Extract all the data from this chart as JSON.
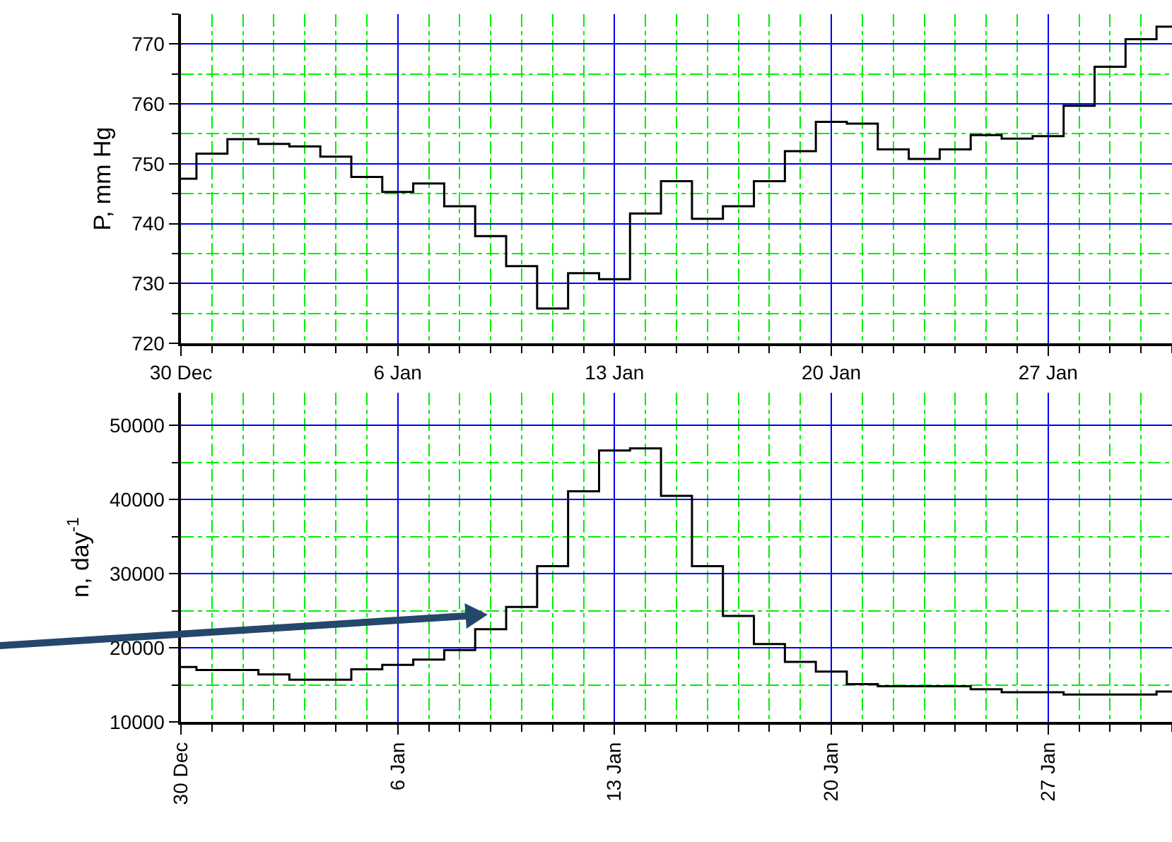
{
  "chart_data": [
    {
      "type": "step",
      "ylabel": "P, mm Hg",
      "categories": [
        "30 Dec",
        null,
        null,
        null,
        null,
        null,
        null,
        "6 Jan",
        null,
        null,
        null,
        null,
        null,
        null,
        "13 Jan",
        null,
        null,
        null,
        null,
        null,
        null,
        "20 Jan",
        null,
        null,
        null,
        null,
        null,
        null,
        "27 Jan",
        null,
        null,
        null,
        null
      ],
      "series": [
        {
          "color": "#000000",
          "values": [
            747.5,
            751.7,
            754.1,
            753.3,
            752.9,
            751.2,
            747.8,
            745.3,
            746.7,
            742.9,
            737.9,
            732.9,
            725.8,
            731.7,
            730.7,
            741.7,
            747.1,
            740.8,
            742.9,
            747.1,
            752.1,
            757.0,
            756.7,
            752.4,
            750.8,
            752.4,
            754.8,
            754.2,
            754.6,
            759.7,
            766.2,
            770.8,
            772.9
          ]
        }
      ],
      "ylim": [
        720,
        775
      ],
      "yticks": [
        720,
        730,
        740,
        750,
        760,
        770
      ],
      "grid": true
    },
    {
      "type": "step",
      "ylabel": "n, day$^{-1}$",
      "categories": [
        "30 Dec",
        null,
        null,
        null,
        null,
        null,
        null,
        "6 Jan",
        null,
        null,
        null,
        null,
        null,
        null,
        "13 Jan",
        null,
        null,
        null,
        null,
        null,
        null,
        "20 Jan",
        null,
        null,
        null,
        null,
        null,
        null,
        "27 Jan",
        null,
        null,
        null,
        null
      ],
      "series": [
        {
          "color": "#000000",
          "values": [
            17400,
            17000,
            17000,
            16400,
            15700,
            15700,
            17100,
            17700,
            18400,
            19700,
            22500,
            25500,
            31000,
            41100,
            46600,
            46900,
            40500,
            31000,
            24300,
            20500,
            18100,
            16800,
            15100,
            14800,
            14800,
            14800,
            14400,
            14000,
            14000,
            13700,
            13700,
            13700,
            14100
          ]
        }
      ],
      "ylim": [
        10000,
        54400
      ],
      "yticks": [
        10000,
        20000,
        30000,
        40000,
        50000
      ],
      "grid": true
    }
  ]
}
